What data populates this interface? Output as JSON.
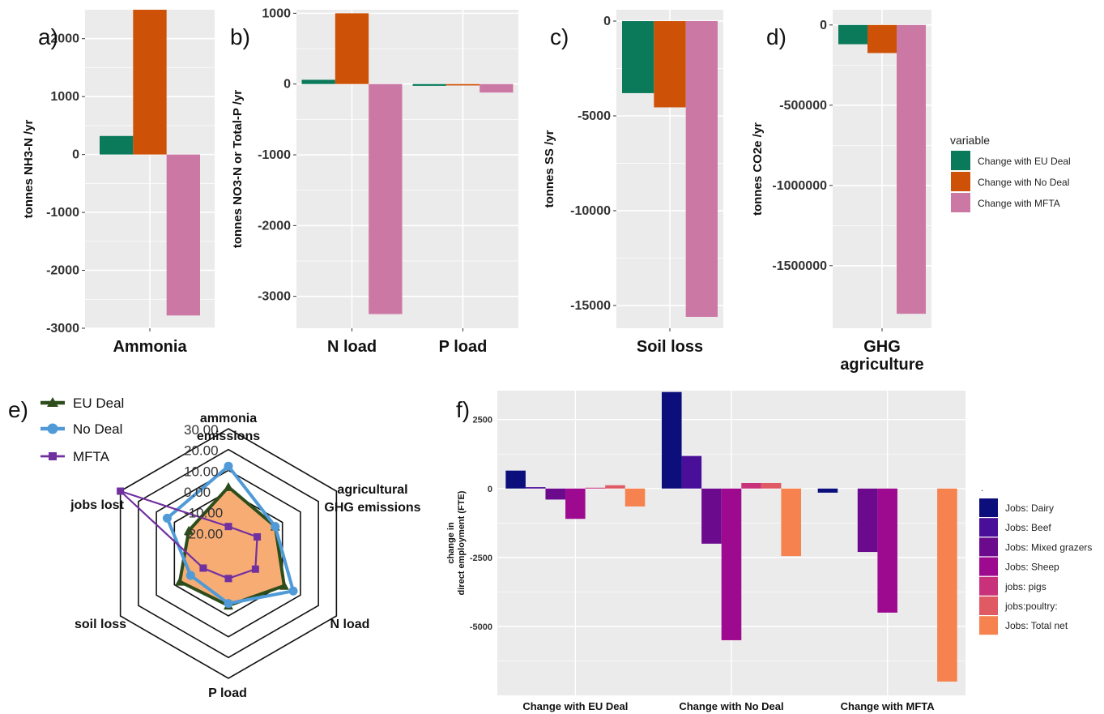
{
  "colors": {
    "eu": "#0b7a5b",
    "nodeal": "#cd5208",
    "mfta": "#cc78a4",
    "panel_bg": "#ebebeb",
    "grid": "#ffffff",
    "radar_eu": "#2e4d1c",
    "radar_nodeal": "#4f9ad7",
    "radar_mfta": "#7030a0",
    "radar_fill": "#f7ac74"
  },
  "chart_data": [
    {
      "panel": "a)",
      "type": "bar",
      "categories": [
        "Ammonia"
      ],
      "ylabel": "tonnes NH3-N /yr",
      "ylim": [
        -3000,
        2500
      ],
      "yticks": [
        2000,
        1000,
        0,
        -1000,
        -2000,
        -3000
      ],
      "ytick_labels": [
        "2000",
        "1000",
        "0",
        "-1000",
        "-2000",
        "-3000"
      ],
      "series": [
        {
          "values": [
            320
          ]
        },
        {
          "values": [
            2500
          ]
        },
        {
          "values": [
            -2780
          ]
        }
      ]
    },
    {
      "panel": "b)",
      "type": "bar",
      "categories": [
        "N load",
        "P load"
      ],
      "ylabel": "tonnes NO3-N or Total-P /yr",
      "ylim": [
        -3450,
        1050
      ],
      "yticks": [
        1000,
        0,
        -1000,
        -2000,
        -3000
      ],
      "ytick_labels": [
        "1000",
        "0",
        "-1000",
        "-2000",
        "-3000"
      ],
      "series": [
        {
          "values": [
            60,
            -25
          ]
        },
        {
          "values": [
            1000,
            -20
          ]
        },
        {
          "values": [
            -3250,
            -120
          ]
        }
      ]
    },
    {
      "panel": "c)",
      "type": "bar",
      "categories": [
        "Soil loss"
      ],
      "ylabel": "tonnes SS /yr",
      "ylim": [
        -16200,
        600
      ],
      "yticks": [
        0,
        -5000,
        -10000,
        -15000
      ],
      "ytick_labels": [
        "0",
        "-5000",
        "-10000",
        "-15000"
      ],
      "series": [
        {
          "values": [
            -3800
          ]
        },
        {
          "values": [
            -4550
          ]
        },
        {
          "values": [
            -15600
          ]
        }
      ]
    },
    {
      "panel": "d)",
      "type": "bar",
      "categories": [
        "GHG agriculture"
      ],
      "category_lines": [
        [
          "GHG",
          "agriculture"
        ]
      ],
      "ylabel": "tonnes CO2e /yr",
      "ylim": [
        -1890000,
        95000
      ],
      "yticks": [
        0,
        -500000,
        -1000000,
        -1500000
      ],
      "ytick_labels": [
        "0",
        "-500000",
        "-1000000",
        "-1500000"
      ],
      "series": [
        {
          "values": [
            -120000
          ]
        },
        {
          "values": [
            -175000
          ]
        },
        {
          "values": [
            -1800000
          ]
        }
      ]
    },
    {
      "panel": "e)",
      "type": "radar",
      "axes": [
        "ammonia emissions",
        "agricultural GHG emissions",
        "N load",
        "P load",
        "soil loss",
        "jobs lost"
      ],
      "axis_label_lines": [
        [
          "ammonia",
          "emissions"
        ],
        [
          "agricultural",
          "GHG emissions"
        ],
        [
          "N load"
        ],
        [
          "P load"
        ],
        [
          "soil loss"
        ],
        [
          "jobs lost"
        ]
      ],
      "rlim": [
        -30,
        30
      ],
      "rticks": [
        30,
        20,
        10,
        0,
        -10,
        -20
      ],
      "rtick_labels": [
        "30.00",
        "20.00",
        "10.00",
        "0.00",
        "-10.00",
        "-20.00"
      ],
      "legend_placement": "top-left",
      "series": [
        {
          "name": "EU Deal",
          "values": [
            2,
            -4,
            1,
            -5,
            -3,
            -8
          ]
        },
        {
          "name": "No Deal",
          "values": [
            12,
            -4,
            6,
            -6,
            -9,
            4
          ]
        },
        {
          "name": "MFTA",
          "values": [
            -17,
            -14,
            -15,
            -18,
            -16,
            30
          ]
        }
      ]
    },
    {
      "panel": "f)",
      "type": "bar",
      "categories": [
        "Change with EU Deal",
        "Change with No Deal",
        "Change with MFTA"
      ],
      "ylabel": "change in direct employment (FTE)",
      "ylabel_lines": [
        "change in",
        "direct employment (FTE)"
      ],
      "ylim": [
        -7500,
        3550
      ],
      "yticks": [
        2500,
        0,
        -2500,
        -5000
      ],
      "ytick_labels": [
        "2500",
        "0",
        "-2500",
        "-5000"
      ],
      "legend_title": ".",
      "legend_placement": "right",
      "series": [
        {
          "name": "Jobs: Dairy",
          "color": "#0c0f7b",
          "values": [
            650,
            3500,
            -150
          ]
        },
        {
          "name": "Jobs: Beef",
          "color": "#4a0f99",
          "values": [
            50,
            1180,
            0
          ]
        },
        {
          "name": "Jobs: Mixed grazers",
          "color": "#6c0a8e",
          "values": [
            -400,
            -2000,
            -2300
          ]
        },
        {
          "name": "Jobs: Sheep",
          "color": "#9e0a8f",
          "values": [
            -1100,
            -5500,
            -4500
          ]
        },
        {
          "name": "jobs: pigs",
          "color": "#c8327a",
          "values": [
            30,
            200,
            0
          ]
        },
        {
          "name": "jobs:poultry:",
          "color": "#df5a63",
          "values": [
            120,
            200,
            0
          ]
        },
        {
          "name": "Jobs: Total net",
          "color": "#f5824f",
          "values": [
            -650,
            -2450,
            -7000
          ]
        }
      ]
    }
  ],
  "legend_bars": {
    "title": "variable",
    "items": [
      "Change with EU Deal",
      "Change with No Deal",
      "Change with MFTA"
    ]
  }
}
